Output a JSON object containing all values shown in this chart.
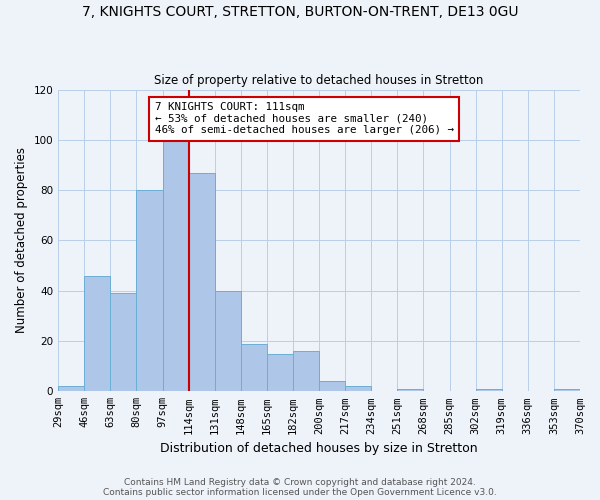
{
  "title": "7, KNIGHTS COURT, STRETTON, BURTON-ON-TRENT, DE13 0GU",
  "subtitle": "Size of property relative to detached houses in Stretton",
  "xlabel": "Distribution of detached houses by size in Stretton",
  "ylabel": "Number of detached properties",
  "bins": [
    "29sqm",
    "46sqm",
    "63sqm",
    "80sqm",
    "97sqm",
    "114sqm",
    "131sqm",
    "148sqm",
    "165sqm",
    "182sqm",
    "200sqm",
    "217sqm",
    "234sqm",
    "251sqm",
    "268sqm",
    "285sqm",
    "302sqm",
    "319sqm",
    "336sqm",
    "353sqm",
    "370sqm"
  ],
  "bar_heights": [
    2,
    46,
    39,
    80,
    100,
    87,
    40,
    19,
    15,
    16,
    4,
    2,
    0,
    1,
    0,
    0,
    1,
    0,
    0,
    1
  ],
  "bar_color": "#aec6e8",
  "bar_edge_color": "#6aaed6",
  "vline_color": "#cc0000",
  "vline_bin_index": 5,
  "annotation_text1": "7 KNIGHTS COURT: 111sqm",
  "annotation_text2": "← 53% of detached houses are smaller (240)",
  "annotation_text3": "46% of semi-detached houses are larger (206) →",
  "annotation_box_color": "#ffffff",
  "annotation_box_edge": "#cc0000",
  "ylim": [
    0,
    120
  ],
  "yticks": [
    0,
    20,
    40,
    60,
    80,
    100,
    120
  ],
  "footer": "Contains HM Land Registry data © Crown copyright and database right 2024.\nContains public sector information licensed under the Open Government Licence v3.0.",
  "bg_color": "#eef2f9"
}
